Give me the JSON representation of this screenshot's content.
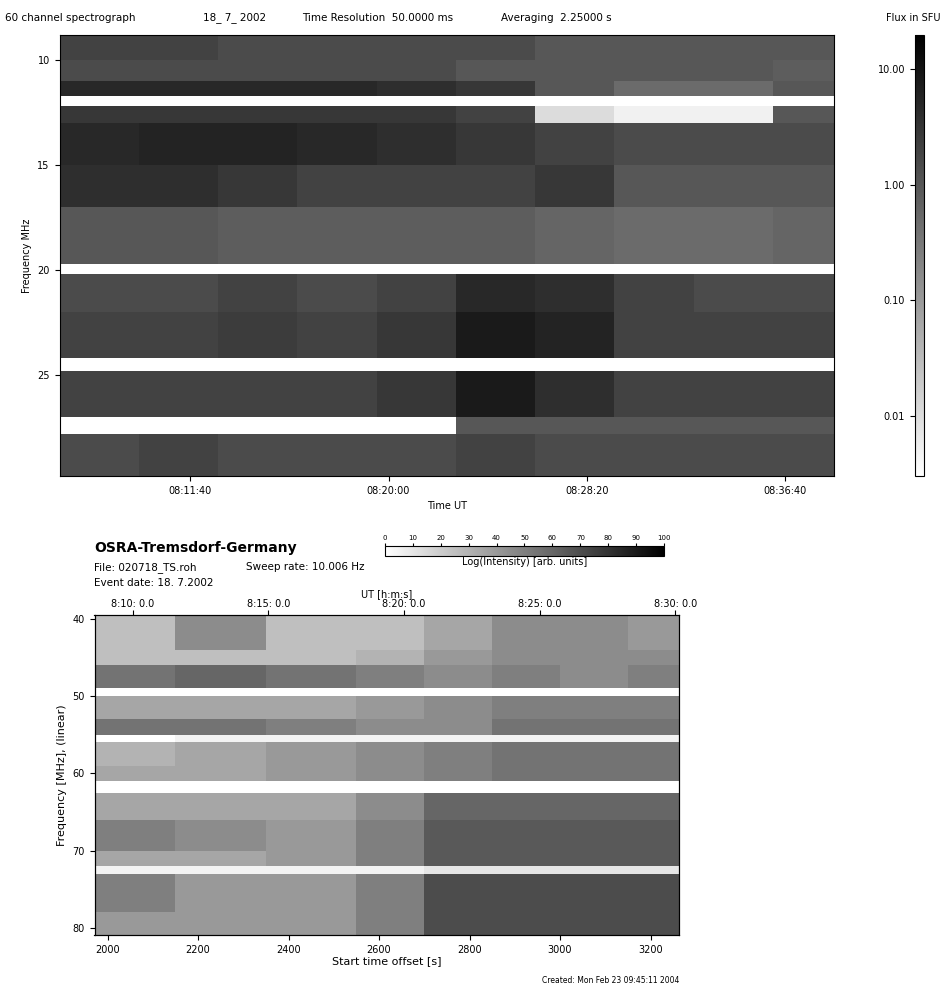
{
  "chart_data": [
    {
      "type": "heatmap",
      "title": "60 channel spectrograph",
      "annotations": [
        "18_ 7_ 2002",
        "Time Resolution  50.0000 ms",
        "Averaging  2.25000 s"
      ],
      "x_label": "Time UT",
      "y_label": "Frequency MHz",
      "xlim": [
        29170,
        31125
      ],
      "xticks": [
        {
          "value": 29500,
          "label": "08:11:40"
        },
        {
          "value": 30000,
          "label": "08:20:00"
        },
        {
          "value": 30500,
          "label": "08:28:20"
        },
        {
          "value": 31000,
          "label": "08:36:40"
        }
      ],
      "ylim": [
        29.8,
        8.8
      ],
      "yticks": [
        10,
        15,
        20,
        25
      ],
      "color": "gray_r",
      "x_edges": [
        29170,
        29370,
        29570,
        29770,
        29970,
        30170,
        30370,
        30570,
        30770,
        30970,
        31125
      ],
      "y_edges": [
        8.8,
        10,
        11,
        11.7,
        12.2,
        13,
        15,
        17,
        19.7,
        20.2,
        22,
        24.2,
        24.8,
        27,
        27.8,
        29.8
      ],
      "cells": [
        [
          2,
          2,
          1.5,
          1.5,
          1.5,
          1.5,
          1,
          1,
          1,
          1
        ],
        [
          1.5,
          1.5,
          1.5,
          1.5,
          1.5,
          1,
          1,
          1,
          1,
          0.8
        ],
        [
          5,
          5,
          5,
          5,
          4,
          3,
          1,
          0.5,
          0.5,
          1
        ],
        [
          0.003,
          0.003,
          0.003,
          0.003,
          0.003,
          0.003,
          0.003,
          0.003,
          0.003,
          0.003
        ],
        [
          3,
          3,
          3,
          3,
          3,
          2,
          0.01,
          0.005,
          0.005,
          1
        ],
        [
          5,
          6,
          6,
          5,
          4,
          3,
          2,
          1.5,
          1.5,
          1.5
        ],
        [
          4,
          4,
          3,
          2,
          2,
          2,
          3,
          1,
          1,
          1
        ],
        [
          1,
          1,
          0.8,
          0.8,
          0.8,
          0.8,
          0.6,
          0.5,
          0.5,
          0.6
        ],
        [
          0.003,
          0.003,
          0.003,
          0.003,
          0.003,
          0.003,
          0.003,
          0.003,
          0.003,
          0.003
        ],
        [
          1.5,
          1.5,
          2,
          1.5,
          2,
          5,
          4,
          2,
          1.5,
          1.5
        ],
        [
          2,
          2,
          2.5,
          2,
          3,
          8,
          6,
          2,
          2,
          2
        ],
        [
          0.003,
          0.003,
          0.003,
          0.003,
          0.003,
          0.003,
          0.003,
          0.003,
          0.003,
          0.003
        ],
        [
          2,
          2,
          2,
          2,
          3,
          8,
          4,
          2,
          2,
          2
        ],
        [
          0.003,
          0.003,
          0.003,
          0.003,
          0.003,
          1,
          1,
          1,
          1,
          1
        ],
        [
          1.5,
          2,
          1.5,
          1.5,
          1.5,
          2,
          1.5,
          1.5,
          1.5,
          1.5
        ]
      ],
      "colorbar": {
        "label": "Flux in SFU",
        "range": [
          0.003,
          20
        ],
        "log": true,
        "ticks": [
          {
            "value": 10,
            "label": "10.00"
          },
          {
            "value": 1,
            "label": "1.00"
          },
          {
            "value": 0.1,
            "label": "0.10"
          },
          {
            "value": 0.01,
            "label": "0.01"
          }
        ]
      }
    },
    {
      "type": "heatmap",
      "title": "OSRA-Tremsdorf-Germany",
      "annotations": [
        "File: 020718_TS.roh",
        "Sweep rate: 10.006 Hz",
        "Event date: 18. 7.2002",
        "Created: Mon Feb 23 09:45:11 2004"
      ],
      "x_label": "Start time offset [s]",
      "x2_label": "UT [h:m:s]",
      "y_label": "Frequency [MHz], (linear)",
      "xlim": [
        1971,
        3264
      ],
      "xticks": [
        2000,
        2200,
        2400,
        2600,
        2800,
        3000,
        3200
      ],
      "x2ticks": [
        {
          "value": 2055,
          "label": "8:10: 0.0"
        },
        {
          "value": 2355,
          "label": "8:15: 0.0"
        },
        {
          "value": 2655,
          "label": "8:20: 0.0"
        },
        {
          "value": 2955,
          "label": "8:25: 0.0"
        },
        {
          "value": 3255,
          "label": "8:30: 0.0"
        }
      ],
      "ylim": [
        81,
        39.5
      ],
      "yticks": [
        40,
        50,
        60,
        70,
        80
      ],
      "color": "gray_r",
      "x_edges": [
        1971,
        2150,
        2350,
        2550,
        2700,
        2850,
        3000,
        3150,
        3264
      ],
      "y_edges": [
        39.5,
        44,
        46,
        49,
        50,
        53,
        55,
        56,
        59,
        61,
        62.5,
        66,
        70,
        72,
        73,
        78,
        81
      ],
      "cells": [
        [
          25,
          45,
          25,
          25,
          35,
          45,
          45,
          40
        ],
        [
          25,
          25,
          25,
          30,
          40,
          45,
          45,
          45
        ],
        [
          55,
          60,
          55,
          50,
          45,
          50,
          45,
          50
        ],
        [
          0,
          0,
          0,
          0,
          0,
          0,
          0,
          0
        ],
        [
          35,
          35,
          35,
          40,
          45,
          50,
          50,
          50
        ],
        [
          55,
          55,
          50,
          45,
          45,
          55,
          55,
          55
        ],
        [
          0,
          5,
          5,
          5,
          5,
          5,
          5,
          5
        ],
        [
          30,
          35,
          40,
          45,
          50,
          55,
          55,
          55
        ],
        [
          35,
          35,
          40,
          45,
          50,
          55,
          55,
          55
        ],
        [
          0,
          0,
          0,
          0,
          0,
          0,
          0,
          0
        ],
        [
          35,
          35,
          35,
          45,
          60,
          60,
          60,
          60
        ],
        [
          50,
          45,
          40,
          50,
          65,
          65,
          65,
          65
        ],
        [
          35,
          35,
          40,
          50,
          65,
          65,
          65,
          65
        ],
        [
          5,
          5,
          5,
          5,
          10,
          10,
          10,
          10
        ],
        [
          50,
          40,
          40,
          50,
          70,
          70,
          70,
          70
        ],
        [
          40,
          40,
          40,
          50,
          70,
          70,
          70,
          70
        ]
      ],
      "colorbar": {
        "label": "Log(Intensity) [arb. units]",
        "range": [
          0,
          100
        ],
        "ticks": [
          0,
          10,
          20,
          30,
          40,
          50,
          60,
          70,
          80,
          90,
          100
        ]
      }
    }
  ]
}
